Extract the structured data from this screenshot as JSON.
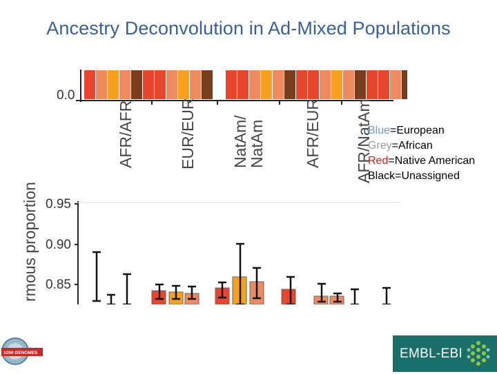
{
  "slide": {
    "title": "Ancestry Deconvolution in Ad-Mixed Populations"
  },
  "top_figure": {
    "y_tick": "0.0",
    "group_labels": [
      "AFR/AFR",
      "EUR/EUR",
      "NatAm/\nNatAm",
      "AFR/EUR",
      "AFR/NatAm"
    ],
    "palette": [
      "#e8452c",
      "#f6a21e",
      "#ef8a60",
      "#7a3d1c"
    ]
  },
  "legend": {
    "blue_word": "Blue",
    "blue_rest": "=European",
    "grey_word": "Grey",
    "grey_rest": "=African",
    "red_word": "Red",
    "red_rest": "=Native American",
    "black_line": "Black=Unassigned"
  },
  "bottom_figure": {
    "ylabel": "rmous proportion",
    "y_ticks": [
      "0.95",
      "0.90",
      "0.85"
    ]
  },
  "logos": {
    "left_text": "1000 GENOMES",
    "right_text": "EMBL-EBI"
  }
}
